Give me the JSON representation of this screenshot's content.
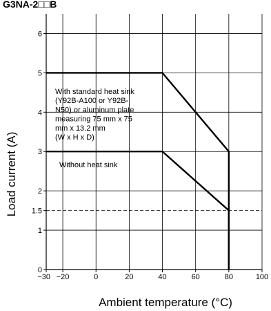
{
  "chart_data": {
    "type": "line",
    "header": "G3NA-2□□B",
    "xlabel": "Ambient temperature (°C)",
    "ylabel": "Load current (A)",
    "xlim": [
      -30,
      100
    ],
    "ylim": [
      0,
      6.5
    ],
    "x_ticks": [
      -30,
      -20,
      0,
      20,
      40,
      60,
      80,
      100
    ],
    "x_tick_labels": [
      "−30",
      "−20",
      "0",
      "20",
      "40",
      "60",
      "80",
      "100"
    ],
    "y_ticks": [
      0,
      1,
      1.5,
      2,
      3,
      4,
      5,
      6
    ],
    "y_tick_labels": [
      "0",
      "1",
      "1.5",
      "2",
      "3",
      "4",
      "5",
      "6"
    ],
    "grid": true,
    "series": [
      {
        "x": [
          -30,
          40,
          80,
          80
        ],
        "y": [
          5,
          5,
          3,
          0
        ]
      },
      {
        "x": [
          -30,
          40,
          80,
          80
        ],
        "y": [
          3,
          3,
          1.5,
          0
        ]
      }
    ],
    "reference_lines": [
      {
        "y": 1.5,
        "style": "dashed"
      }
    ],
    "annotations": [
      {
        "lines": [
          "With standard heat sink",
          "(Y92B-A100 or Y92B-",
          "N50) or aluminum plate",
          "measuring 75 mm x 75",
          "mm x 13.2 mm",
          "(W x H x D)"
        ]
      },
      {
        "lines": [
          "Without heat sink"
        ]
      }
    ]
  }
}
